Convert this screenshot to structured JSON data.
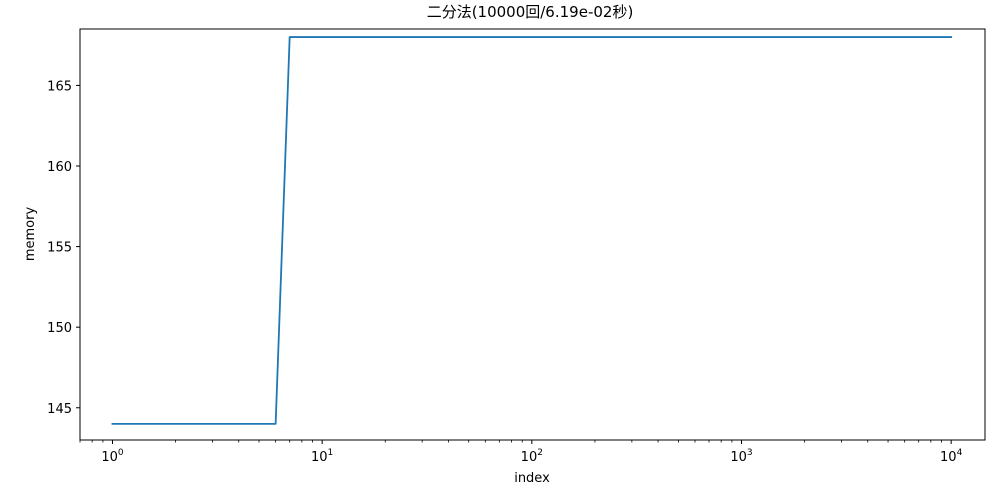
{
  "chart_data": {
    "type": "line",
    "title": "二分法(10000回/6.19e-02秒)",
    "xlabel": "index",
    "ylabel": "memory",
    "xscale": "log",
    "xlim": [
      0.7,
      14500
    ],
    "ylim": [
      143,
      168.5
    ],
    "grid": false,
    "legend": "none",
    "x_ticks": [
      {
        "value": 1,
        "base": "10",
        "exp": "0"
      },
      {
        "value": 10,
        "base": "10",
        "exp": "1"
      },
      {
        "value": 100,
        "base": "10",
        "exp": "2"
      },
      {
        "value": 1000,
        "base": "10",
        "exp": "3"
      },
      {
        "value": 10000,
        "base": "10",
        "exp": "4"
      }
    ],
    "y_ticks": [
      {
        "value": 145,
        "label": "145"
      },
      {
        "value": 150,
        "label": "150"
      },
      {
        "value": 155,
        "label": "155"
      },
      {
        "value": 160,
        "label": "160"
      },
      {
        "value": 165,
        "label": "165"
      }
    ],
    "series": [
      {
        "color": "#1f77b4",
        "x": [
          1,
          2,
          3,
          4,
          5,
          6,
          7,
          10,
          100,
          1000,
          10000
        ],
        "y": [
          144,
          144,
          144,
          144,
          144,
          144,
          168,
          168,
          168,
          168,
          168
        ]
      }
    ]
  }
}
